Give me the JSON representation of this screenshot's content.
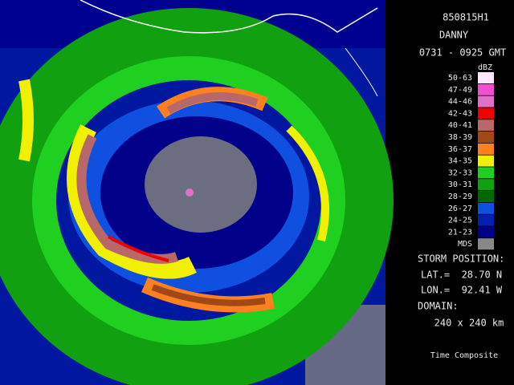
{
  "header": {
    "flight": "850815H1",
    "storm": "DANNY",
    "time_range": "0731 - 0925 GMT"
  },
  "legend": {
    "unit": "dBZ",
    "entries": [
      {
        "label": "50-63",
        "color": "#ffe8ff"
      },
      {
        "label": "47-49",
        "color": "#f050d0"
      },
      {
        "label": "44-46",
        "color": "#e070c8"
      },
      {
        "label": "42-43",
        "color": "#f00000"
      },
      {
        "label": "40-41",
        "color": "#b86868"
      },
      {
        "label": "38-39",
        "color": "#a04818"
      },
      {
        "label": "36-37",
        "color": "#ff8020"
      },
      {
        "label": "34-35",
        "color": "#f0f000"
      },
      {
        "label": "32-33",
        "color": "#20d020"
      },
      {
        "label": "30-31",
        "color": "#10a010"
      },
      {
        "label": "28-29",
        "color": "#006800"
      },
      {
        "label": "26-27",
        "color": "#1050e0"
      },
      {
        "label": "24-25",
        "color": "#0020b0"
      },
      {
        "label": "21-23",
        "color": "#000088"
      },
      {
        "label": "MDS",
        "color": "#888888"
      }
    ]
  },
  "storm_position": {
    "heading": "STORM POSITION:",
    "lat": "LAT.=  28.70 N",
    "lon": "LON.=  92.41 W"
  },
  "domain": {
    "heading": "DOMAIN:",
    "size": "240 x 240 km"
  },
  "footer": "Time Composite"
}
